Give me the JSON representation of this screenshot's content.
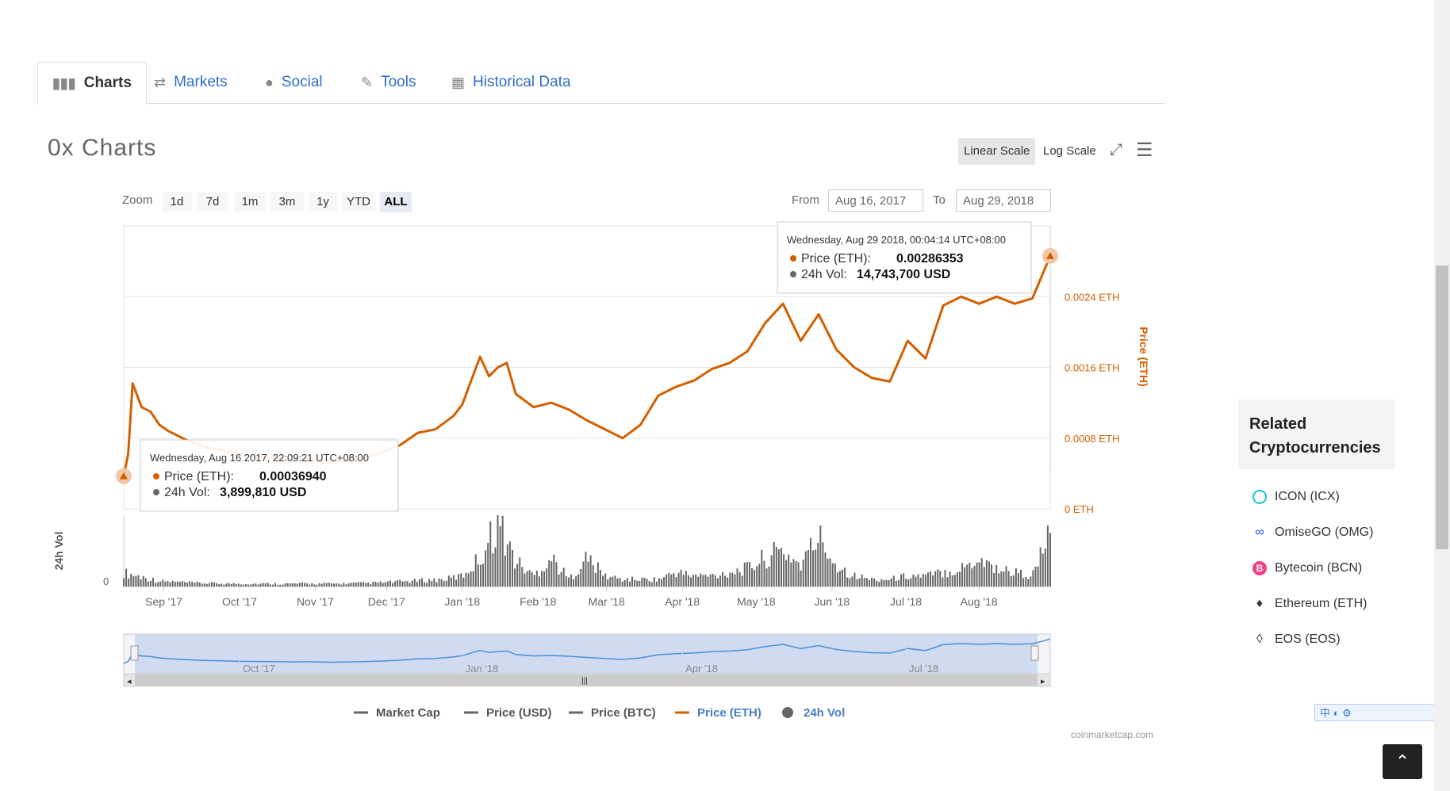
{
  "tabs": [
    {
      "label": "Charts",
      "icon": "bar-chart-icon"
    },
    {
      "label": "Markets",
      "icon": "exchange-icon"
    },
    {
      "label": "Social",
      "icon": "globe-icon"
    },
    {
      "label": "Tools",
      "icon": "wrench-icon"
    },
    {
      "label": "Historical Data",
      "icon": "calendar-icon"
    }
  ],
  "page_title": "0x Charts",
  "scale": {
    "linear": "Linear Scale",
    "log": "Log Scale",
    "selected": "Linear Scale"
  },
  "zoom": {
    "label": "Zoom",
    "options": [
      "1d",
      "7d",
      "1m",
      "3m",
      "1y",
      "YTD",
      "ALL"
    ],
    "selected": "ALL"
  },
  "range": {
    "from_label": "From",
    "from": "Aug 16, 2017",
    "to_label": "To",
    "to": "Aug 29, 2018"
  },
  "tooltips": [
    {
      "date": "Wednesday, Aug 16 2017, 22:09:21 UTC+08:00",
      "price_label": "Price (ETH):",
      "price": "0.00036940",
      "vol_label": "24h Vol:",
      "vol": "3,899,810 USD"
    },
    {
      "date": "Wednesday, Aug 29 2018, 00:04:14 UTC+08:00",
      "price_label": "Price (ETH):",
      "price": "0.00286353",
      "vol_label": "24h Vol:",
      "vol": "14,743,700 USD"
    }
  ],
  "legend": [
    "Market Cap",
    "Price (USD)",
    "Price (BTC)",
    "Price (ETH)",
    "24h Vol"
  ],
  "credit": "coinmarketcap.com",
  "related": {
    "title_line1": "Related",
    "title_line2": "Cryptocurrencies",
    "items": [
      {
        "label": "ICON (ICX)",
        "icon": "icon-logo-icon",
        "color": "#1fc5c9"
      },
      {
        "label": "OmiseGO (OMG)",
        "icon": "omisego-logo-icon",
        "color": "#1a53f0"
      },
      {
        "label": "Bytecoin (BCN)",
        "icon": "bytecoin-logo-icon",
        "color": "#f04086"
      },
      {
        "label": "Ethereum (ETH)",
        "icon": "ethereum-logo-icon",
        "color": "#333333"
      },
      {
        "label": "EOS (EOS)",
        "icon": "eos-logo-icon",
        "color": "#333333"
      }
    ]
  },
  "ime_text": "中 ◐ ⚙",
  "colors": {
    "price_eth": "#d35f00",
    "volume": "#666666",
    "navigator": "#4a90d9",
    "link": "#2f6fc6"
  },
  "chart_data": {
    "type": "line",
    "title": "",
    "x_ticks": [
      "Sep '17",
      "Oct '17",
      "Nov '17",
      "Dec '17",
      "Jan '18",
      "Feb '18",
      "Mar '18",
      "Apr '18",
      "May '18",
      "Jun '18",
      "Jul '18",
      "Aug '18"
    ],
    "navigator_ticks": [
      "Oct '17",
      "Jan '18",
      "Apr '18",
      "Jul '18"
    ],
    "y_ticks": [
      "0 ETH",
      "0.0008 ETH",
      "0.0016 ETH",
      "0.0024 ETH"
    ],
    "ylabel": "Price (ETH)",
    "ylim": [
      0,
      0.0028
    ],
    "vol_label": "24h Vol",
    "vol_tick": "0",
    "grid": true,
    "legend_position": "bottom",
    "series": [
      {
        "name": "Price (ETH)",
        "color": "#d35f00",
        "x": [
          2017.62,
          2017.625,
          2017.63,
          2017.64,
          2017.65,
          2017.66,
          2017.67,
          2017.69,
          2017.71,
          2017.73,
          2017.75,
          2017.77,
          2017.79,
          2017.81,
          2017.83,
          2017.85,
          2017.87,
          2017.89,
          2017.91,
          2017.93,
          2017.95,
          2017.97,
          2017.99,
          2018.0,
          2018.01,
          2018.02,
          2018.03,
          2018.04,
          2018.05,
          2018.06,
          2018.08,
          2018.1,
          2018.12,
          2018.14,
          2018.16,
          2018.18,
          2018.2,
          2018.22,
          2018.24,
          2018.26,
          2018.28,
          2018.3,
          2018.32,
          2018.34,
          2018.36,
          2018.38,
          2018.4,
          2018.42,
          2018.44,
          2018.46,
          2018.48,
          2018.5,
          2018.52,
          2018.54,
          2018.56,
          2018.58,
          2018.6,
          2018.62,
          2018.64,
          2018.66
        ],
        "y": [
          0.00037,
          0.00062,
          0.00142,
          0.00115,
          0.0011,
          0.00095,
          0.00088,
          0.00078,
          0.0007,
          0.00066,
          0.00061,
          0.00059,
          0.00058,
          0.00055,
          0.00056,
          0.00052,
          0.00054,
          0.00058,
          0.00064,
          0.00072,
          0.00086,
          0.0009,
          0.00105,
          0.00118,
          0.00145,
          0.00172,
          0.0015,
          0.0016,
          0.00165,
          0.0013,
          0.00115,
          0.0012,
          0.00112,
          0.001,
          0.0009,
          0.0008,
          0.00095,
          0.00128,
          0.00138,
          0.00145,
          0.00158,
          0.00165,
          0.00178,
          0.0021,
          0.00232,
          0.0019,
          0.0022,
          0.0018,
          0.0016,
          0.00148,
          0.00144,
          0.0019,
          0.0017,
          0.0023,
          0.0024,
          0.00232,
          0.0024,
          0.00232,
          0.00238,
          0.00286
        ]
      },
      {
        "name": "24h Vol",
        "color": "#666666",
        "x": [
          2017.62,
          2017.66,
          2017.7,
          2017.74,
          2017.78,
          2017.82,
          2017.86,
          2017.9,
          2017.94,
          2017.98,
          2018.0,
          2018.02,
          2018.04,
          2018.06,
          2018.08,
          2018.1,
          2018.12,
          2018.14,
          2018.16,
          2018.18,
          2018.2,
          2018.22,
          2018.24,
          2018.26,
          2018.28,
          2018.3,
          2018.32,
          2018.34,
          2018.36,
          2018.38,
          2018.4,
          2018.42,
          2018.44,
          2018.46,
          2018.48,
          2018.5,
          2018.52,
          2018.54,
          2018.56,
          2018.58,
          2018.6,
          2018.62,
          2018.64,
          2018.66
        ],
        "y": [
          3.9,
          1.5,
          1.0,
          0.8,
          0.8,
          0.8,
          0.8,
          1.0,
          1.5,
          2.0,
          3.0,
          8.0,
          18.0,
          7.0,
          3.0,
          8.0,
          2.0,
          8.0,
          3.0,
          2.0,
          2.0,
          2.0,
          4.0,
          3.0,
          3.0,
          4.0,
          5.0,
          8.0,
          10.0,
          6.0,
          14.0,
          6.0,
          3.0,
          2.0,
          2.0,
          3.0,
          3.0,
          4.0,
          5.0,
          8.0,
          5.0,
          4.0,
          3.0,
          14.7
        ]
      }
    ]
  }
}
